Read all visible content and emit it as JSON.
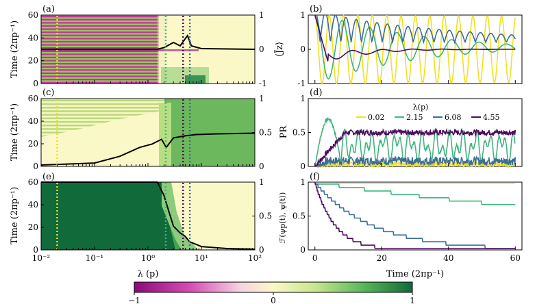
{
  "chart_data": [
    {
      "id": "a",
      "type": "heatmap",
      "panel_label": "(a)",
      "x_scale": "log",
      "xlim": [
        0.01,
        100
      ],
      "ylabel": "Time (2πp⁻¹)",
      "ylim": [
        0,
        60
      ],
      "yticks": [
        "0",
        "20",
        "40",
        "60"
      ],
      "right_axis": {
        "ylim": [
          -1,
          1
        ],
        "ticks": [
          "-1",
          "0",
          "1"
        ]
      },
      "overlay_line_right": [
        [
          0.01,
          0
        ],
        [
          1.5,
          0
        ],
        [
          2.0,
          0.05
        ],
        [
          3.0,
          0.2
        ],
        [
          4.0,
          0.1
        ],
        [
          5.5,
          0.4
        ],
        [
          6.5,
          0.1
        ],
        [
          10,
          0.02
        ],
        [
          100,
          0
        ]
      ],
      "markers_lambda": [
        0.02,
        2.15,
        4.55,
        6.08
      ]
    },
    {
      "id": "b",
      "type": "line",
      "panel_label": "(b)",
      "ylabel": "⟨J̃z⟩",
      "ylim": [
        -1,
        1
      ],
      "xlim": [
        -2,
        62
      ],
      "yticks": [
        "-1",
        "0",
        "1"
      ],
      "series": [
        {
          "name": "0.02",
          "color": "#f2e020",
          "kind": "cos",
          "period": 4.3,
          "amp_start": 1.0,
          "amp_end": 0.97,
          "offset": 0
        },
        {
          "name": "2.15",
          "color": "#3fb57d",
          "kind": "damped",
          "period": 8.2,
          "amp_start": 1.05,
          "amp_end": 0.35,
          "offset": 0.05
        },
        {
          "name": "6.08",
          "color": "#3c6e97",
          "kind": "abscos",
          "period": 3.1,
          "amp_start": 0.95,
          "amp_end": 0.35,
          "offset": 0.2
        },
        {
          "name": "4.55",
          "color": "#4b0c5e",
          "kind": "dip",
          "period": 9.0,
          "amp_start": 0.6,
          "amp_end": 0.05,
          "offset": 0
        }
      ]
    },
    {
      "id": "c",
      "type": "heatmap",
      "panel_label": "(c)",
      "x_scale": "log",
      "xlim": [
        0.01,
        100
      ],
      "ylabel": "Time (2πp⁻¹)",
      "ylim": [
        0,
        60
      ],
      "yticks": [
        "0",
        "20",
        "40",
        "60"
      ],
      "right_axis": {
        "ylim": [
          0,
          1
        ],
        "ticks": [
          "0",
          "0.5",
          "1"
        ]
      },
      "overlay_line_right": [
        [
          0.01,
          0.02
        ],
        [
          0.1,
          0.05
        ],
        [
          0.3,
          0.15
        ],
        [
          0.7,
          0.28
        ],
        [
          1.2,
          0.33
        ],
        [
          1.8,
          0.4
        ],
        [
          2.2,
          0.28
        ],
        [
          3.0,
          0.42
        ],
        [
          5.0,
          0.45
        ],
        [
          8.0,
          0.47
        ],
        [
          20,
          0.48
        ],
        [
          100,
          0.49
        ]
      ],
      "markers_lambda": [
        0.02,
        2.15,
        4.55,
        6.08
      ]
    },
    {
      "id": "d",
      "type": "line",
      "panel_label": "(d)",
      "ylabel": "PR",
      "ylim": [
        0,
        1
      ],
      "xlim": [
        -2,
        62
      ],
      "yticks": [
        "0",
        "0.5",
        "1"
      ],
      "legend": {
        "title": "λ(p)",
        "placement": "top",
        "entries": [
          "0.02",
          "2.15",
          "6.08",
          "4.55"
        ]
      },
      "series": [
        {
          "name": "0.02",
          "color": "#f2e020",
          "kind": "noise",
          "level": 0.03,
          "amp": 0.03
        },
        {
          "name": "2.15",
          "color": "#3fb57d",
          "kind": "spiky",
          "level": 0.3,
          "amp": 0.25
        },
        {
          "name": "6.08",
          "color": "#3c6e97",
          "kind": "noise",
          "level": 0.08,
          "amp": 0.06
        },
        {
          "name": "4.55",
          "color": "#4b0c5e",
          "kind": "rise",
          "level": 0.5,
          "amp": 0.04
        }
      ]
    },
    {
      "id": "e",
      "type": "heatmap",
      "panel_label": "(e)",
      "x_scale": "log",
      "xlim": [
        0.01,
        100
      ],
      "xlabel": "λ (p)",
      "xticks": [
        "10⁻²",
        "10⁻¹",
        "10⁰",
        "10¹",
        "10²"
      ],
      "ylabel": "Time (2πp⁻¹)",
      "ylim": [
        0,
        60
      ],
      "yticks": [
        "0",
        "20",
        "40",
        "60"
      ],
      "right_axis": {
        "ylim": [
          0,
          1
        ],
        "ticks": [
          "0",
          "0.5",
          "1"
        ]
      },
      "overlay_line_right": [
        [
          0.01,
          1
        ],
        [
          1.5,
          1
        ],
        [
          2.0,
          0.8
        ],
        [
          2.5,
          0.55
        ],
        [
          3.0,
          0.35
        ],
        [
          4.0,
          0.25
        ],
        [
          5.0,
          0.2
        ],
        [
          6.0,
          0.12
        ],
        [
          10,
          0.05
        ],
        [
          30,
          0.02
        ],
        [
          100,
          0.01
        ]
      ],
      "markers_lambda": [
        0.02,
        2.15,
        4.55,
        6.08
      ]
    },
    {
      "id": "f",
      "type": "line",
      "panel_label": "(f)",
      "xlabel": "Time (2πp⁻¹)",
      "xticks": [
        "0",
        "20",
        "40",
        "60"
      ],
      "ylabel": "ℱ(ψp(t), ψ(t))",
      "ylim": [
        0,
        1
      ],
      "xlim": [
        -2,
        62
      ],
      "yticks": [
        "0",
        "0.5",
        "1"
      ],
      "series": [
        {
          "name": "0.02",
          "color": "#f2e020",
          "kind": "flat",
          "level": 0.98
        },
        {
          "name": "2.15",
          "color": "#3fb57d",
          "kind": "decay",
          "tau": 140
        },
        {
          "name": "6.08",
          "color": "#3c6e97",
          "kind": "decay",
          "tau": 17
        },
        {
          "name": "4.55",
          "color": "#4b0c5e",
          "kind": "decay",
          "tau": 6
        }
      ]
    }
  ],
  "colorbar": {
    "ticks": [
      "−1",
      "0",
      "1"
    ],
    "range": [
      -1,
      1
    ]
  }
}
